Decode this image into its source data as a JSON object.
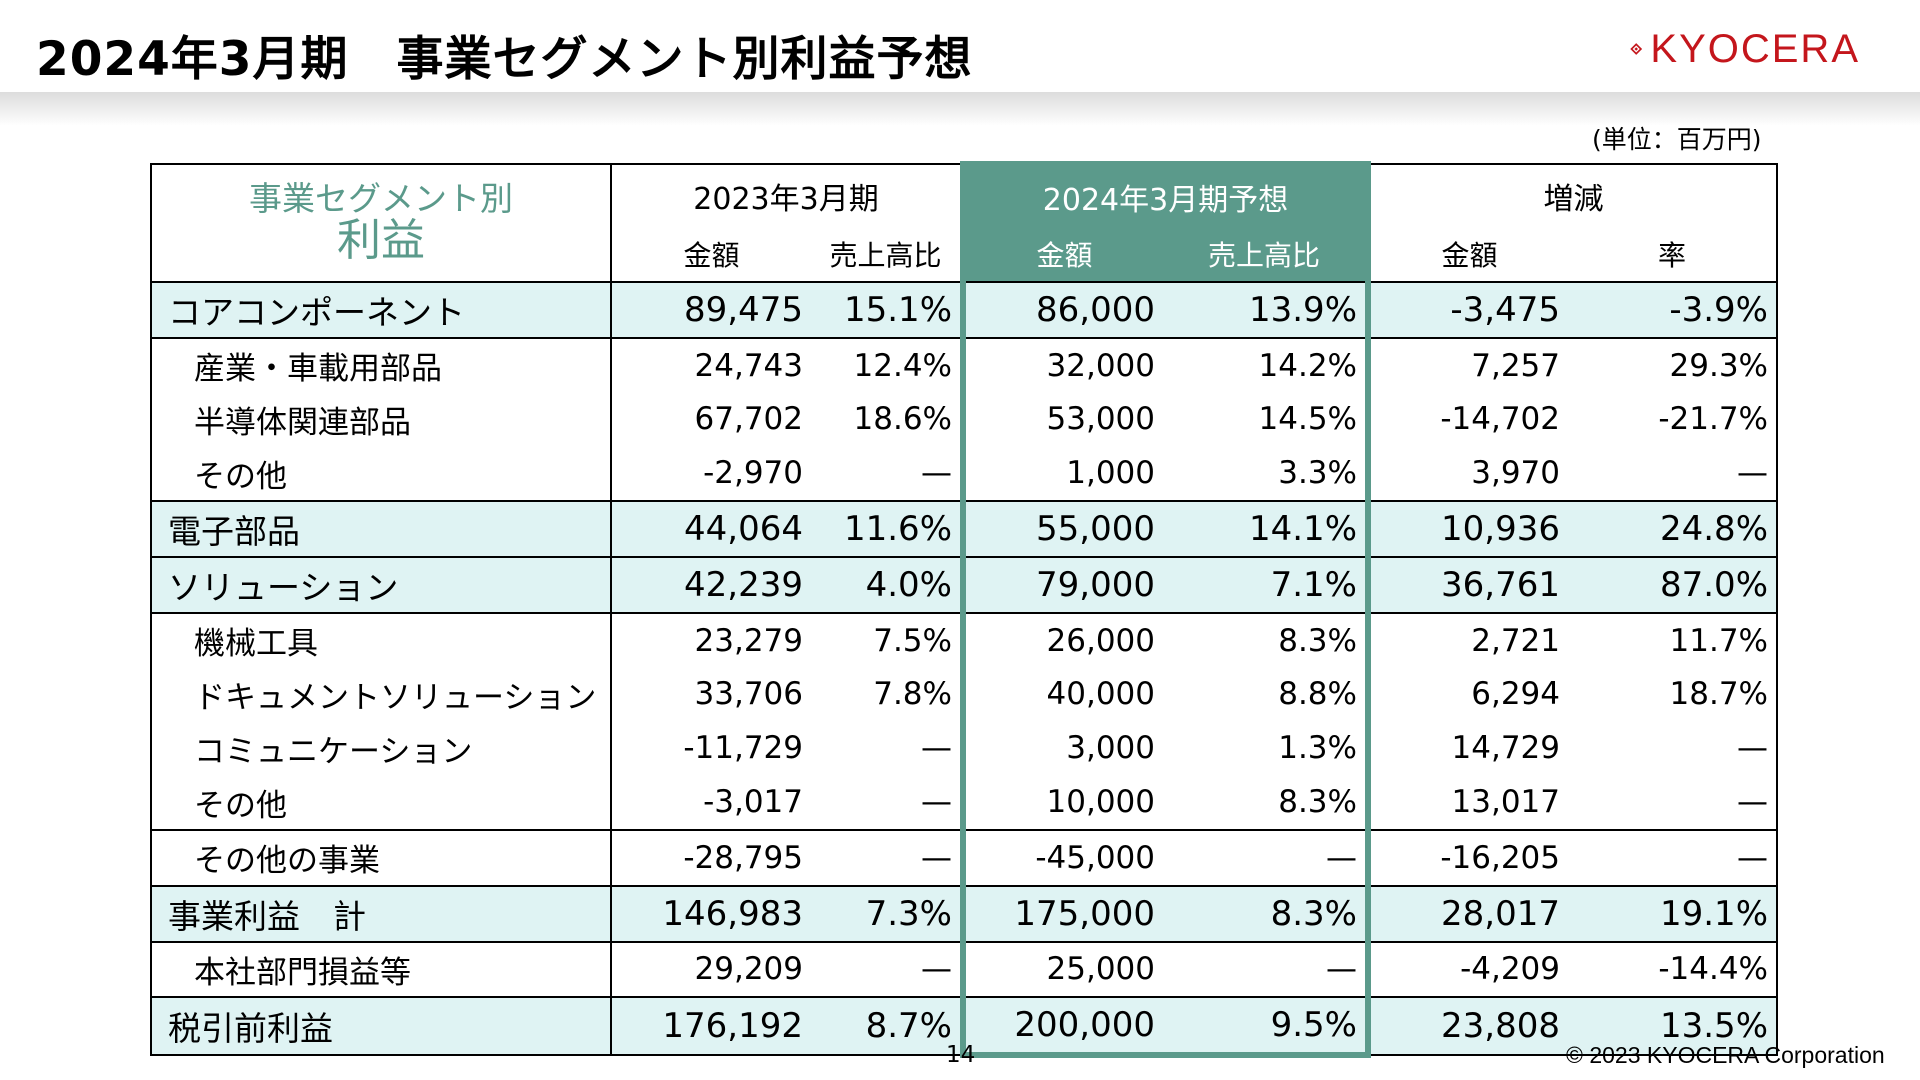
{
  "title": "2024年3月期　事業セグメント別利益予想",
  "logo": {
    "text": "KYOCERA",
    "color": "#c4161c"
  },
  "unit_note": "(単位：百万円)",
  "table": {
    "segment_header": [
      "事業セグメント別",
      "利益"
    ],
    "periods": [
      "2023年3月期",
      "2024年3月期予想",
      "増減"
    ],
    "sub_headers": [
      "金額",
      "売上高比",
      "金額",
      "売上高比",
      "金額",
      "率"
    ],
    "rows": [
      {
        "label": "コアコンポーネント",
        "major": true,
        "values": [
          "89,475",
          "15.1%",
          "86,000",
          "13.9%",
          "-3,475",
          "-3.9%"
        ]
      },
      {
        "label": "産業・車載用部品",
        "major": false,
        "values": [
          "24,743",
          "12.4%",
          "32,000",
          "14.2%",
          "7,257",
          "29.3%"
        ]
      },
      {
        "label": "半導体関連部品",
        "major": false,
        "values": [
          "67,702",
          "18.6%",
          "53,000",
          "14.5%",
          "-14,702",
          "-21.7%"
        ]
      },
      {
        "label": "その他",
        "major": false,
        "values": [
          "-2,970",
          "—",
          "1,000",
          "3.3%",
          "3,970",
          "—"
        ]
      },
      {
        "label": "電子部品",
        "major": true,
        "values": [
          "44,064",
          "11.6%",
          "55,000",
          "14.1%",
          "10,936",
          "24.8%"
        ]
      },
      {
        "label": "ソリューション",
        "major": true,
        "values": [
          "42,239",
          "4.0%",
          "79,000",
          "7.1%",
          "36,761",
          "87.0%"
        ]
      },
      {
        "label": "機械工具",
        "major": false,
        "values": [
          "23,279",
          "7.5%",
          "26,000",
          "8.3%",
          "2,721",
          "11.7%"
        ]
      },
      {
        "label": "ドキュメントソリューション",
        "major": false,
        "values": [
          "33,706",
          "7.8%",
          "40,000",
          "8.8%",
          "6,294",
          "18.7%"
        ]
      },
      {
        "label": "コミュニケーション",
        "major": false,
        "values": [
          "-11,729",
          "—",
          "3,000",
          "1.3%",
          "14,729",
          "—"
        ]
      },
      {
        "label": "その他",
        "major": false,
        "values": [
          "-3,017",
          "—",
          "10,000",
          "8.3%",
          "13,017",
          "—"
        ]
      },
      {
        "label": "その他の事業",
        "major": false,
        "values": [
          "-28,795",
          "—",
          "-45,000",
          "—",
          "-16,205",
          "—"
        ]
      },
      {
        "label": "事業利益　計",
        "major": true,
        "values": [
          "146,983",
          "7.3%",
          "175,000",
          "8.3%",
          "28,017",
          "19.1%"
        ]
      },
      {
        "label": "本社部門損益等",
        "major": false,
        "values": [
          "29,209",
          "—",
          "25,000",
          "—",
          "-4,209",
          "-14.4%"
        ]
      },
      {
        "label": "税引前利益",
        "major": true,
        "values": [
          "176,192",
          "8.7%",
          "200,000",
          "9.5%",
          "23,808",
          "13.5%"
        ]
      }
    ]
  },
  "page_number": "14",
  "copyright": "© 2023 KYOCERA Corporation",
  "colors": {
    "accent": "#5b9a8b",
    "highlight_row": "#dff3f3",
    "brand_red": "#c4161c"
  }
}
